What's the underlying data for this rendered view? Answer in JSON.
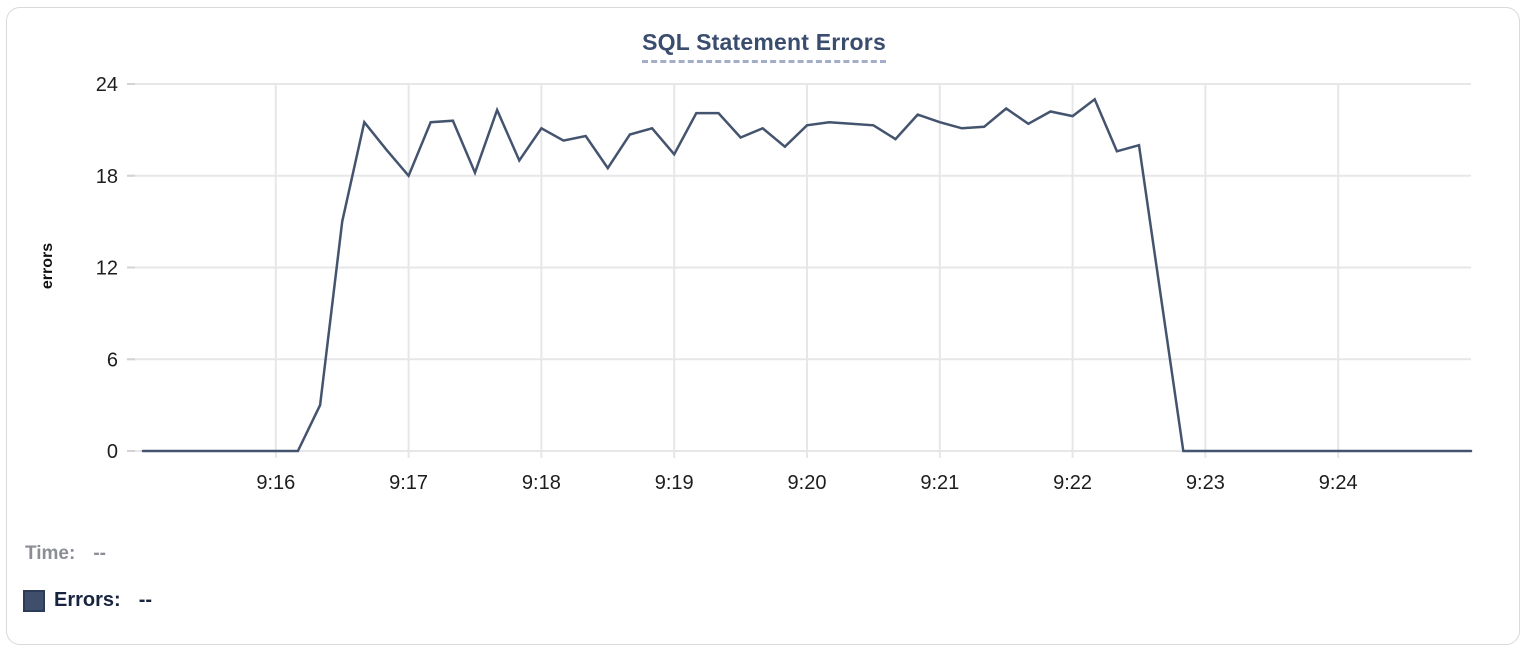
{
  "chart": {
    "title": "SQL Statement Errors",
    "y_axis_label": "errors"
  },
  "legend": {
    "time": {
      "label": "Time:",
      "value": "--"
    },
    "errors": {
      "label": "Errors:",
      "value": "--"
    }
  },
  "colors": {
    "line": "#44546e",
    "title": "#3b4d6e",
    "title_underline": "#a3aec6",
    "grid": "#e7e7e9",
    "grid_tick": "#d3d3d6",
    "tick_text": "#1d1d1f",
    "legend_time_text": "#8b8e94",
    "legend_errors_text": "#18243f",
    "swatch_fill": "#3e4e6b",
    "swatch_border": "#2c3b58",
    "card_border": "#d9d9d9"
  },
  "chart_data": {
    "type": "line",
    "title": "SQL Statement Errors",
    "xlabel": "",
    "ylabel": "errors",
    "ylim": [
      0,
      24
    ],
    "y_ticks": [
      0,
      6,
      12,
      18,
      24
    ],
    "x_ticks": [
      "9:16",
      "9:17",
      "9:18",
      "9:19",
      "9:20",
      "9:21",
      "9:22",
      "9:23",
      "9:24"
    ],
    "x_range": [
      "9:15:00",
      "9:25:00"
    ],
    "sample_interval_seconds": 10,
    "grid": true,
    "legend_position": "bottom-left",
    "series": [
      {
        "name": "Errors",
        "color": "#44546e",
        "times": [
          "9:15:00",
          "9:15:10",
          "9:15:20",
          "9:15:30",
          "9:15:40",
          "9:15:50",
          "9:16:00",
          "9:16:10",
          "9:16:20",
          "9:16:30",
          "9:16:40",
          "9:16:50",
          "9:17:00",
          "9:17:10",
          "9:17:20",
          "9:17:30",
          "9:17:40",
          "9:17:50",
          "9:18:00",
          "9:18:10",
          "9:18:20",
          "9:18:30",
          "9:18:40",
          "9:18:50",
          "9:19:00",
          "9:19:10",
          "9:19:20",
          "9:19:30",
          "9:19:40",
          "9:19:50",
          "9:20:00",
          "9:20:10",
          "9:20:20",
          "9:20:30",
          "9:20:40",
          "9:20:50",
          "9:21:00",
          "9:21:10",
          "9:21:20",
          "9:21:30",
          "9:21:40",
          "9:21:50",
          "9:22:00",
          "9:22:10",
          "9:22:20",
          "9:22:30",
          "9:22:40",
          "9:22:50",
          "9:23:00",
          "9:23:10",
          "9:23:20",
          "9:23:30",
          "9:23:40",
          "9:23:50",
          "9:24:00",
          "9:24:10",
          "9:24:20",
          "9:24:30",
          "9:24:40",
          "9:24:50",
          "9:25:00"
        ],
        "values": [
          0,
          0,
          0,
          0,
          0,
          0,
          0,
          0,
          3,
          15,
          21.5,
          19.7,
          18,
          21.5,
          21.6,
          18.2,
          22.3,
          19,
          21.1,
          20.3,
          20.6,
          18.5,
          20.7,
          21.1,
          19.4,
          22.1,
          22.1,
          20.5,
          21.1,
          19.9,
          21.3,
          21.5,
          21.4,
          21.3,
          20.4,
          22,
          21.5,
          21.1,
          21.2,
          22.4,
          21.4,
          22.2,
          21.9,
          23,
          19.6,
          20,
          10,
          0,
          0,
          0,
          0,
          0,
          0,
          0,
          0,
          0,
          0,
          0,
          0,
          0,
          0
        ]
      }
    ]
  }
}
